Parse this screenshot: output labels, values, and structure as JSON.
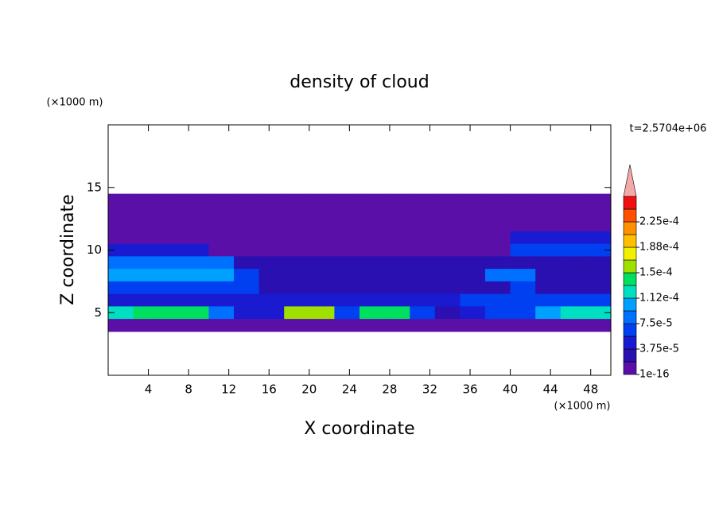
{
  "chart_data": {
    "type": "contour",
    "title": "density of cloud",
    "subtitle": "t=2.5704e+06",
    "x_label": "X coordinate",
    "y_label": "Z coordinate",
    "x_unit": "(×1000 m)",
    "y_unit": "(×1000 m)",
    "xlim": [
      0,
      50
    ],
    "ylim": [
      0,
      20
    ],
    "xticks": [
      4,
      8,
      12,
      16,
      20,
      24,
      28,
      32,
      36,
      40,
      44,
      48
    ],
    "yticks": [
      5,
      10,
      15
    ],
    "x": [
      1.25,
      3.75,
      6.25,
      8.75,
      11.25,
      13.75,
      16.25,
      18.75,
      21.25,
      23.75,
      26.25,
      28.75,
      31.25,
      33.75,
      36.25,
      38.75,
      41.25,
      43.75,
      46.25,
      48.75
    ],
    "z": [
      14,
      13,
      12,
      11,
      10,
      9,
      8,
      7,
      6,
      5,
      4
    ],
    "values": [
      [
        2e-06,
        2e-06,
        2e-06,
        2e-06,
        2e-06,
        2e-06,
        2e-06,
        2e-06,
        2e-06,
        2e-06,
        2e-06,
        2e-06,
        2e-06,
        2e-06,
        2e-06,
        2e-06,
        2e-06,
        2e-06,
        2e-06,
        2e-06
      ],
      [
        2e-06,
        2e-06,
        2e-06,
        2e-06,
        2e-06,
        2e-06,
        2e-06,
        2e-06,
        2e-06,
        2e-06,
        2e-06,
        2e-06,
        2e-06,
        2e-06,
        2e-06,
        2e-06,
        2e-06,
        2e-06,
        2e-06,
        2e-06
      ],
      [
        2e-06,
        2e-06,
        2e-06,
        2e-06,
        2e-06,
        2e-06,
        2e-06,
        2e-06,
        2e-06,
        2e-06,
        2e-06,
        2e-06,
        2e-06,
        2e-06,
        2e-06,
        2e-06,
        2e-06,
        2e-06,
        2e-06,
        2e-06
      ],
      [
        2e-06,
        2e-06,
        2e-06,
        2e-06,
        2e-06,
        2e-06,
        2e-06,
        2e-06,
        2e-06,
        2e-06,
        2e-06,
        2e-06,
        2e-06,
        2e-06,
        2e-06,
        2e-06,
        4e-05,
        4e-05,
        4e-05,
        4e-05
      ],
      [
        5e-05,
        5e-05,
        5e-05,
        5e-05,
        2e-06,
        2e-06,
        2e-06,
        2e-06,
        2e-06,
        2e-06,
        2e-06,
        2e-06,
        2e-06,
        2e-06,
        2e-06,
        2e-06,
        6e-05,
        6e-05,
        6e-05,
        6e-05
      ],
      [
        8e-05,
        8e-05,
        8e-05,
        8e-05,
        8e-05,
        2.5e-05,
        2.5e-05,
        2.5e-05,
        2.5e-05,
        2.5e-05,
        2.5e-05,
        2.5e-05,
        2.5e-05,
        2.5e-05,
        2.5e-05,
        2.5e-05,
        3e-05,
        3e-05,
        3e-05,
        3e-05
      ],
      [
        0.0001,
        0.0001,
        0.0001,
        0.0001,
        0.0001,
        7e-05,
        2.5e-05,
        2.5e-05,
        2.5e-05,
        2.5e-05,
        2.5e-05,
        2.5e-05,
        2.5e-05,
        2.5e-05,
        2.5e-05,
        8e-05,
        8e-05,
        3e-05,
        3e-05,
        3e-05
      ],
      [
        6e-05,
        6e-05,
        6e-05,
        6e-05,
        6e-05,
        6e-05,
        3e-05,
        3e-05,
        3e-05,
        3e-05,
        3e-05,
        3e-05,
        3e-05,
        3e-05,
        3e-05,
        3e-05,
        7e-05,
        3e-05,
        3e-05,
        3e-05
      ],
      [
        4e-05,
        4e-05,
        4e-05,
        4e-05,
        4e-05,
        4e-05,
        4e-05,
        4e-05,
        4e-05,
        4e-05,
        4e-05,
        4e-05,
        4e-05,
        4e-05,
        7e-05,
        7e-05,
        7e-05,
        7e-05,
        7e-05,
        7e-05
      ],
      [
        0.00012,
        0.00014,
        0.00014,
        0.00014,
        8e-05,
        5e-05,
        4e-05,
        0.00015,
        0.00015,
        6e-05,
        0.00014,
        0.00014,
        6e-05,
        3e-05,
        4e-05,
        7e-05,
        7e-05,
        0.0001,
        0.00013,
        0.00013
      ],
      [
        2e-06,
        2e-06,
        2e-06,
        2e-06,
        2e-06,
        2e-06,
        2e-06,
        2e-06,
        2e-06,
        2e-06,
        2e-06,
        2e-06,
        2e-06,
        2e-06,
        2e-06,
        2e-06,
        2e-06,
        2e-06,
        2e-06,
        2e-06
      ]
    ],
    "levels": [
      1e-16,
      1.875e-05,
      3.75e-05,
      5.625e-05,
      7.5e-05,
      9.375e-05,
      0.0001125,
      0.00013125,
      0.00015,
      0.00016875,
      0.0001875,
      0.00020625,
      0.000225,
      0.00024375
    ],
    "colors": [
      "#5a10a8",
      "#2a10b0",
      "#1a1ad0",
      "#0040f0",
      "#0070ff",
      "#00a0ff",
      "#00e0c0",
      "#00e060",
      "#a0e000",
      "#f0f000",
      "#ffc000",
      "#ff9000",
      "#ff5000",
      "#f01010"
    ],
    "over_color": "#f4a8a8",
    "cbar_ticks": [
      1e-16,
      {
        "value": 3.75e-05,
        "label": "3.75e-5"
      },
      {
        "value": 7.5e-05,
        "label": "7.5e-5"
      },
      {
        "value": 0.0001125,
        "label": "1.12e-4"
      },
      {
        "value": 0.00015,
        "label": "1.5e-4"
      },
      {
        "value": 0.0001875,
        "label": "1.88e-4"
      },
      {
        "value": 0.000225,
        "label": "2.25e-4"
      }
    ]
  }
}
